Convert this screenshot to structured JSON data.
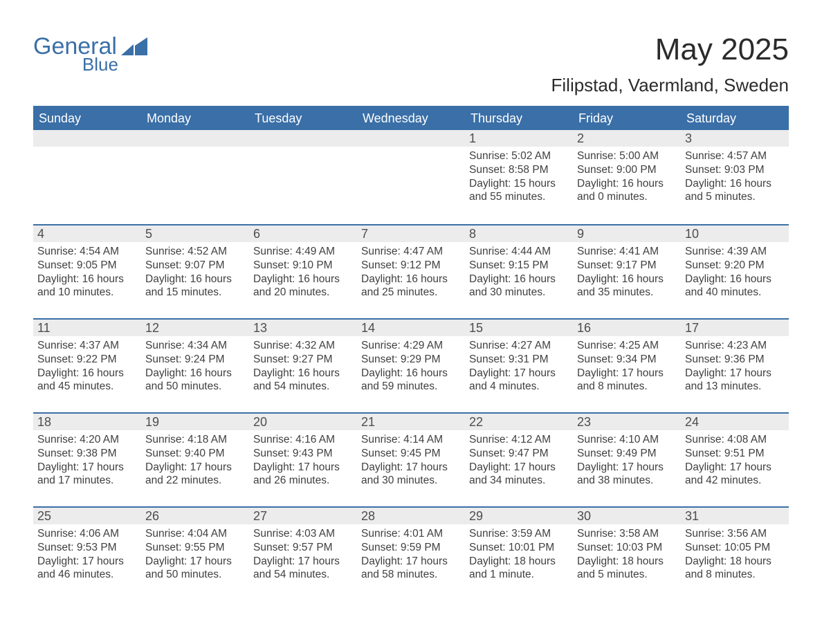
{
  "brand": {
    "name_top": "General",
    "name_bottom": "Blue"
  },
  "title": "May 2025",
  "location": "Filipstad, Vaermland, Sweden",
  "colors": {
    "brand_blue": "#3a6fa7",
    "header_bg": "#3a6fa7",
    "header_text": "#ffffff",
    "daynum_bg": "#ececec",
    "text": "#404040",
    "background": "#ffffff"
  },
  "typography": {
    "title_fontsize": 44,
    "subtitle_fontsize": 26,
    "dayheader_fontsize": 18,
    "body_fontsize": 15.5
  },
  "layout": {
    "columns": 7,
    "rows": 5,
    "cell_min_height": 136
  },
  "day_names": [
    "Sunday",
    "Monday",
    "Tuesday",
    "Wednesday",
    "Thursday",
    "Friday",
    "Saturday"
  ],
  "weeks": [
    [
      {
        "day": "",
        "lines": []
      },
      {
        "day": "",
        "lines": []
      },
      {
        "day": "",
        "lines": []
      },
      {
        "day": "",
        "lines": []
      },
      {
        "day": "1",
        "lines": [
          "Sunrise: 5:02 AM",
          "Sunset: 8:58 PM",
          "Daylight: 15 hours and 55 minutes."
        ]
      },
      {
        "day": "2",
        "lines": [
          "Sunrise: 5:00 AM",
          "Sunset: 9:00 PM",
          "Daylight: 16 hours and 0 minutes."
        ]
      },
      {
        "day": "3",
        "lines": [
          "Sunrise: 4:57 AM",
          "Sunset: 9:03 PM",
          "Daylight: 16 hours and 5 minutes."
        ]
      }
    ],
    [
      {
        "day": "4",
        "lines": [
          "Sunrise: 4:54 AM",
          "Sunset: 9:05 PM",
          "Daylight: 16 hours and 10 minutes."
        ]
      },
      {
        "day": "5",
        "lines": [
          "Sunrise: 4:52 AM",
          "Sunset: 9:07 PM",
          "Daylight: 16 hours and 15 minutes."
        ]
      },
      {
        "day": "6",
        "lines": [
          "Sunrise: 4:49 AM",
          "Sunset: 9:10 PM",
          "Daylight: 16 hours and 20 minutes."
        ]
      },
      {
        "day": "7",
        "lines": [
          "Sunrise: 4:47 AM",
          "Sunset: 9:12 PM",
          "Daylight: 16 hours and 25 minutes."
        ]
      },
      {
        "day": "8",
        "lines": [
          "Sunrise: 4:44 AM",
          "Sunset: 9:15 PM",
          "Daylight: 16 hours and 30 minutes."
        ]
      },
      {
        "day": "9",
        "lines": [
          "Sunrise: 4:41 AM",
          "Sunset: 9:17 PM",
          "Daylight: 16 hours and 35 minutes."
        ]
      },
      {
        "day": "10",
        "lines": [
          "Sunrise: 4:39 AM",
          "Sunset: 9:20 PM",
          "Daylight: 16 hours and 40 minutes."
        ]
      }
    ],
    [
      {
        "day": "11",
        "lines": [
          "Sunrise: 4:37 AM",
          "Sunset: 9:22 PM",
          "Daylight: 16 hours and 45 minutes."
        ]
      },
      {
        "day": "12",
        "lines": [
          "Sunrise: 4:34 AM",
          "Sunset: 9:24 PM",
          "Daylight: 16 hours and 50 minutes."
        ]
      },
      {
        "day": "13",
        "lines": [
          "Sunrise: 4:32 AM",
          "Sunset: 9:27 PM",
          "Daylight: 16 hours and 54 minutes."
        ]
      },
      {
        "day": "14",
        "lines": [
          "Sunrise: 4:29 AM",
          "Sunset: 9:29 PM",
          "Daylight: 16 hours and 59 minutes."
        ]
      },
      {
        "day": "15",
        "lines": [
          "Sunrise: 4:27 AM",
          "Sunset: 9:31 PM",
          "Daylight: 17 hours and 4 minutes."
        ]
      },
      {
        "day": "16",
        "lines": [
          "Sunrise: 4:25 AM",
          "Sunset: 9:34 PM",
          "Daylight: 17 hours and 8 minutes."
        ]
      },
      {
        "day": "17",
        "lines": [
          "Sunrise: 4:23 AM",
          "Sunset: 9:36 PM",
          "Daylight: 17 hours and 13 minutes."
        ]
      }
    ],
    [
      {
        "day": "18",
        "lines": [
          "Sunrise: 4:20 AM",
          "Sunset: 9:38 PM",
          "Daylight: 17 hours and 17 minutes."
        ]
      },
      {
        "day": "19",
        "lines": [
          "Sunrise: 4:18 AM",
          "Sunset: 9:40 PM",
          "Daylight: 17 hours and 22 minutes."
        ]
      },
      {
        "day": "20",
        "lines": [
          "Sunrise: 4:16 AM",
          "Sunset: 9:43 PM",
          "Daylight: 17 hours and 26 minutes."
        ]
      },
      {
        "day": "21",
        "lines": [
          "Sunrise: 4:14 AM",
          "Sunset: 9:45 PM",
          "Daylight: 17 hours and 30 minutes."
        ]
      },
      {
        "day": "22",
        "lines": [
          "Sunrise: 4:12 AM",
          "Sunset: 9:47 PM",
          "Daylight: 17 hours and 34 minutes."
        ]
      },
      {
        "day": "23",
        "lines": [
          "Sunrise: 4:10 AM",
          "Sunset: 9:49 PM",
          "Daylight: 17 hours and 38 minutes."
        ]
      },
      {
        "day": "24",
        "lines": [
          "Sunrise: 4:08 AM",
          "Sunset: 9:51 PM",
          "Daylight: 17 hours and 42 minutes."
        ]
      }
    ],
    [
      {
        "day": "25",
        "lines": [
          "Sunrise: 4:06 AM",
          "Sunset: 9:53 PM",
          "Daylight: 17 hours and 46 minutes."
        ]
      },
      {
        "day": "26",
        "lines": [
          "Sunrise: 4:04 AM",
          "Sunset: 9:55 PM",
          "Daylight: 17 hours and 50 minutes."
        ]
      },
      {
        "day": "27",
        "lines": [
          "Sunrise: 4:03 AM",
          "Sunset: 9:57 PM",
          "Daylight: 17 hours and 54 minutes."
        ]
      },
      {
        "day": "28",
        "lines": [
          "Sunrise: 4:01 AM",
          "Sunset: 9:59 PM",
          "Daylight: 17 hours and 58 minutes."
        ]
      },
      {
        "day": "29",
        "lines": [
          "Sunrise: 3:59 AM",
          "Sunset: 10:01 PM",
          "Daylight: 18 hours and 1 minute."
        ]
      },
      {
        "day": "30",
        "lines": [
          "Sunrise: 3:58 AM",
          "Sunset: 10:03 PM",
          "Daylight: 18 hours and 5 minutes."
        ]
      },
      {
        "day": "31",
        "lines": [
          "Sunrise: 3:56 AM",
          "Sunset: 10:05 PM",
          "Daylight: 18 hours and 8 minutes."
        ]
      }
    ]
  ]
}
